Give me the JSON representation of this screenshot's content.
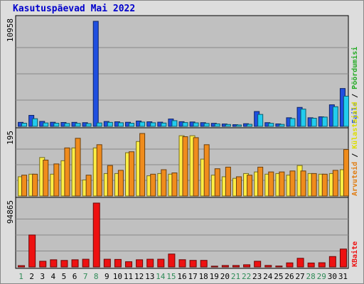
{
  "chart_data": {
    "type": "bar",
    "title": "Kasutuspäevad Mai 2022",
    "categories": [
      "1",
      "2",
      "3",
      "4",
      "5",
      "6",
      "7",
      "8",
      "9",
      "10",
      "11",
      "12",
      "13",
      "14",
      "15",
      "16",
      "17",
      "18",
      "19",
      "20",
      "21",
      "22",
      "23",
      "24",
      "25",
      "26",
      "27",
      "28",
      "29",
      "30",
      "31"
    ],
    "weekend_days": [
      "1",
      "7",
      "8",
      "14",
      "15",
      "21",
      "22",
      "28",
      "29"
    ],
    "panels": [
      {
        "name": "top",
        "max_label": "10958",
        "ymax": 10958,
        "series": [
          {
            "name": "Pöördumisi",
            "color": "#1f4fe0",
            "values": [
              420,
              1150,
              520,
              430,
              410,
              420,
              390,
              10958,
              510,
              480,
              430,
              560,
              480,
              440,
              770,
              490,
              460,
              390,
              320,
              250,
              180,
              280,
              1550,
              390,
              260,
              900,
              1980,
              900,
              1000,
              2250,
              3950
            ]
          },
          {
            "name": "Faile",
            "color": "#22ccee",
            "values": [
              330,
              800,
              360,
              330,
              310,
              320,
              290,
              360,
              420,
              380,
              330,
              450,
              380,
              350,
              600,
              400,
              370,
              310,
              260,
              200,
              150,
              220,
              1250,
              320,
              210,
              820,
              1800,
              850,
              970,
              2050,
              3150
            ]
          }
        ],
        "side_labels": [
          "Pöördumisi",
          "Faile"
        ]
      },
      {
        "name": "middle",
        "max_label": "195",
        "ymax": 195,
        "series": [
          {
            "name": "Külastajaid",
            "color": "#ffee44",
            "values": [
              60,
              68,
              120,
              68,
              110,
              150,
              50,
              150,
              70,
              70,
              135,
              170,
              63,
              70,
              68,
              188,
              188,
              115,
              65,
              60,
              55,
              70,
              75,
              68,
              70,
              65,
              95,
              70,
              68,
              70,
              82
            ]
          },
          {
            "name": "Arvuteid",
            "color": "#f08c1c",
            "values": [
              65,
              68,
              112,
              100,
              150,
              180,
              65,
              160,
              95,
              80,
              138,
              195,
              68,
              82,
              72,
              185,
              182,
              160,
              85,
              90,
              60,
              65,
              90,
              75,
              75,
              78,
              78,
              70,
              68,
              80,
              145
            ]
          }
        ],
        "side_labels": [
          "Arvuteid",
          "Külastajaid"
        ]
      },
      {
        "name": "bottom",
        "max_label": "94865",
        "ymax": 94865,
        "series": [
          {
            "name": "KBaite",
            "color": "#ee1111",
            "values": [
              2000,
              47500,
              8500,
              10700,
              9700,
              10700,
              11500,
              94865,
              11500,
              11200,
              7800,
              10700,
              11500,
              11500,
              19200,
              10800,
              9800,
              9800,
              1200,
              2200,
              2200,
              3300,
              8500,
              2300,
              1400,
              6100,
              12900,
              5900,
              6300,
              15500,
              26600
            ]
          }
        ],
        "side_labels": [
          "KBaite"
        ]
      }
    ]
  }
}
